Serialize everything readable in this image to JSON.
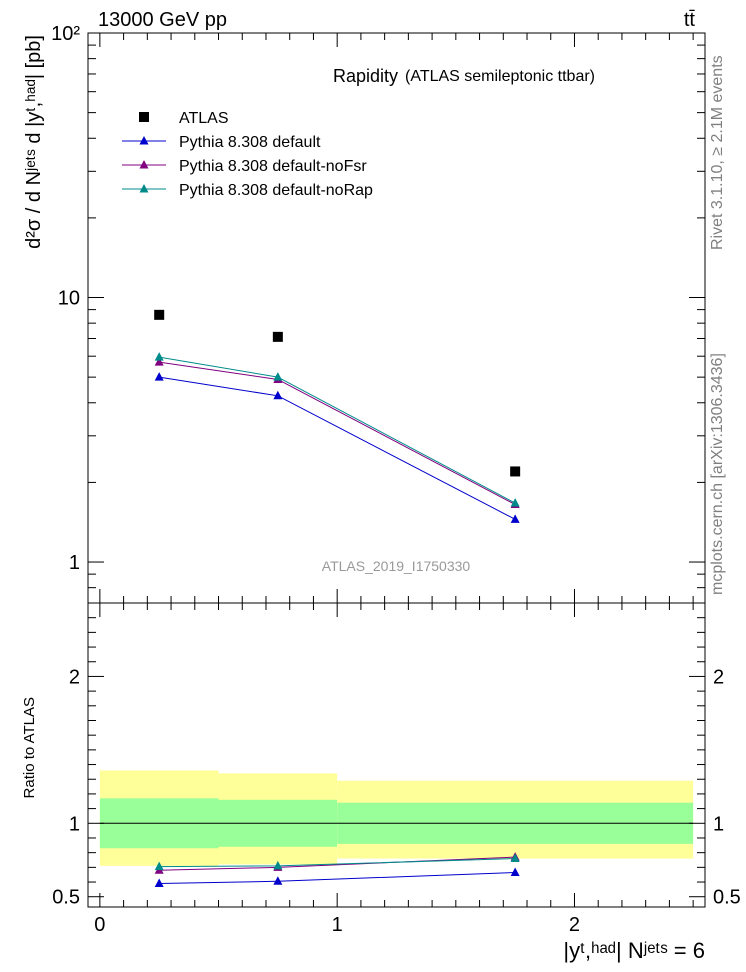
{
  "header": {
    "energy": "13000 GeV pp",
    "process": "tt̄"
  },
  "side_labels": {
    "rivet": "Rivet 3.1.10, ≥ 2.1M events",
    "mcplots": "mcplots.cern.ch [arXiv:1306.3436]"
  },
  "chart_data": [
    {
      "type": "line",
      "title": "Rapidity",
      "subtitle": "(ATLAS semileptonic ttbar)",
      "watermark": "ATLAS_2019_I1750330",
      "ylabel": "d²σ / d Nʲᵉᵗˢ d |yᵗ,ʰᵃᵈ| [pb]",
      "yscale": "log",
      "ylim": [
        0.7,
        100
      ],
      "xlim": [
        -0.05,
        2.55
      ],
      "yticks": [
        {
          "value": 1,
          "label": "1"
        },
        {
          "value": 10,
          "label": "10"
        },
        {
          "value": 100,
          "label": "10²"
        }
      ],
      "legend_position": "top-left",
      "x": [
        0.25,
        0.75,
        1.75
      ],
      "series": [
        {
          "name": "ATLAS",
          "marker": "square",
          "color": "#000000",
          "values": [
            8.6,
            7.1,
            2.2
          ]
        },
        {
          "name": "Pythia 8.308 default",
          "marker": "triangle",
          "color": "#0000cc",
          "values": [
            5.0,
            4.25,
            1.45
          ]
        },
        {
          "name": "Pythia 8.308 default-noFsr",
          "marker": "triangle",
          "color": "#800080",
          "values": [
            5.7,
            4.9,
            1.65
          ]
        },
        {
          "name": "Pythia 8.308 default-noRap",
          "marker": "triangle",
          "color": "#008b8b",
          "values": [
            5.95,
            5.0,
            1.67
          ]
        }
      ]
    },
    {
      "type": "line",
      "ylabel": "Ratio to ATLAS",
      "xlabel": "|yᵗ,ʰᵃᵈ| Nʲᵉᵗˢ = 6",
      "ylim": [
        0.43,
        2.5
      ],
      "xlim": [
        -0.05,
        2.55
      ],
      "yticks": [
        {
          "value": 0.5,
          "label": "0.5"
        },
        {
          "value": 1,
          "label": "1"
        },
        {
          "value": 2,
          "label": "2"
        }
      ],
      "xticks": [
        {
          "value": 0,
          "label": "0"
        },
        {
          "value": 1,
          "label": "1"
        },
        {
          "value": 2,
          "label": "2"
        }
      ],
      "bands": [
        {
          "x0": 0.0,
          "x1": 0.5,
          "yellow": [
            0.71,
            1.36
          ],
          "green": [
            0.83,
            1.17
          ]
        },
        {
          "x0": 0.5,
          "x1": 1.0,
          "yellow": [
            0.72,
            1.34
          ],
          "green": [
            0.84,
            1.16
          ]
        },
        {
          "x0": 1.0,
          "x1": 2.5,
          "yellow": [
            0.76,
            1.29
          ],
          "green": [
            0.86,
            1.14
          ]
        }
      ],
      "x": [
        0.25,
        0.75,
        1.75
      ],
      "series": [
        {
          "name": "Pythia 8.308 default",
          "color": "#0000cc",
          "values": [
            0.59,
            0.605,
            0.665
          ]
        },
        {
          "name": "Pythia 8.308 default-noFsr",
          "color": "#800080",
          "values": [
            0.68,
            0.7,
            0.77
          ]
        },
        {
          "name": "Pythia 8.308 default-noRap",
          "color": "#008b8b",
          "values": [
            0.705,
            0.71,
            0.76
          ]
        }
      ]
    }
  ]
}
